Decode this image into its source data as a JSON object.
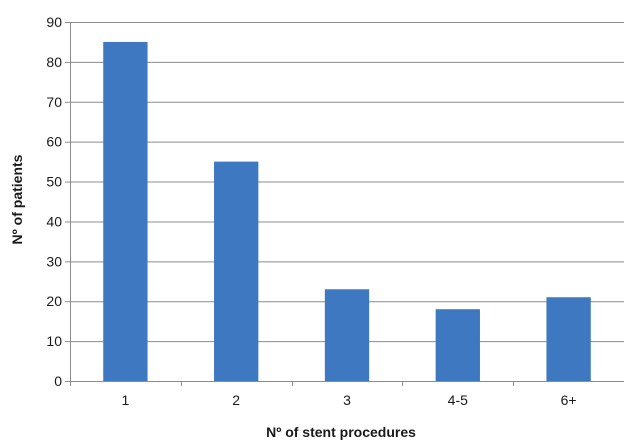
{
  "chart_data": {
    "type": "bar",
    "categories": [
      "1",
      "2",
      "3",
      "4-5",
      "6+"
    ],
    "values": [
      85,
      55,
      23,
      18,
      21
    ],
    "title": "",
    "xlabel": "Nº of stent procedures",
    "ylabel": "Nº of patients",
    "ylim": [
      0,
      90
    ],
    "yticks": [
      0,
      10,
      20,
      30,
      40,
      50,
      60,
      70,
      80,
      90
    ],
    "grid": true,
    "legend": "none",
    "bar_color": "#3d78c1",
    "grid_color": "#8c8c8c",
    "axis_color": "#8c8c8c"
  }
}
